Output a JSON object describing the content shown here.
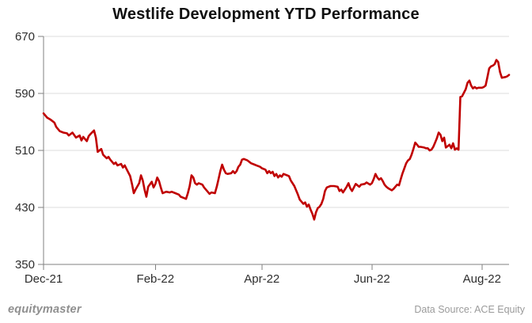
{
  "title": "Westlife Development YTD Performance",
  "footer": {
    "brand": "equitymaster",
    "source": "Data Source: ACE Equity"
  },
  "colors": {
    "line": "#c00000",
    "grid": "#dcdcdc",
    "axis": "#808080",
    "tick_label": "#2e2e2e",
    "title": "#111111",
    "footer_gray": "#9b9b9b"
  },
  "chart_data": {
    "type": "line",
    "title": "Westlife Development YTD Performance",
    "xlabel": "",
    "ylabel": "",
    "grid": "horizontal",
    "legend": "none",
    "y_axis": {
      "ticks": [
        350,
        430,
        510,
        590,
        670
      ],
      "range": [
        350,
        670
      ]
    },
    "x_axis": {
      "tick_labels": [
        "Dec-21",
        "Feb-22",
        "Apr-22",
        "Jun-22",
        "Aug-22"
      ],
      "tick_dates": [
        "2021-12-01",
        "2022-02-01",
        "2022-04-01",
        "2022-06-01",
        "2022-08-01"
      ],
      "range_dates": [
        "2021-12-01",
        "2022-08-16"
      ]
    },
    "series": [
      {
        "color": "#c00000",
        "points": [
          [
            "2021-12-01",
            562
          ],
          [
            "2021-12-03",
            556
          ],
          [
            "2021-12-05",
            553
          ],
          [
            "2021-12-07",
            549
          ],
          [
            "2021-12-08",
            543
          ],
          [
            "2021-12-10",
            537
          ],
          [
            "2021-12-12",
            535
          ],
          [
            "2021-12-14",
            534
          ],
          [
            "2021-12-15",
            531
          ],
          [
            "2021-12-17",
            535
          ],
          [
            "2021-12-19",
            528
          ],
          [
            "2021-12-21",
            531
          ],
          [
            "2021-12-22",
            524
          ],
          [
            "2021-12-23",
            529
          ],
          [
            "2021-12-25",
            523
          ],
          [
            "2021-12-26",
            530
          ],
          [
            "2021-12-27",
            533
          ],
          [
            "2021-12-29",
            538
          ],
          [
            "2021-12-30",
            528
          ],
          [
            "2021-12-31",
            508
          ],
          [
            "2022-01-02",
            512
          ],
          [
            "2022-01-03",
            504
          ],
          [
            "2022-01-05",
            499
          ],
          [
            "2022-01-06",
            501
          ],
          [
            "2022-01-07",
            497
          ],
          [
            "2022-01-09",
            491
          ],
          [
            "2022-01-10",
            493
          ],
          [
            "2022-01-11",
            489
          ],
          [
            "2022-01-13",
            491
          ],
          [
            "2022-01-14",
            486
          ],
          [
            "2022-01-15",
            489
          ],
          [
            "2022-01-16",
            484
          ],
          [
            "2022-01-18",
            474
          ],
          [
            "2022-01-19",
            463
          ],
          [
            "2022-01-20",
            450
          ],
          [
            "2022-01-21",
            455
          ],
          [
            "2022-01-23",
            464
          ],
          [
            "2022-01-24",
            475
          ],
          [
            "2022-01-25",
            468
          ],
          [
            "2022-01-26",
            455
          ],
          [
            "2022-01-27",
            445
          ],
          [
            "2022-01-28",
            459
          ],
          [
            "2022-01-30",
            466
          ],
          [
            "2022-01-31",
            458
          ],
          [
            "2022-02-01",
            463
          ],
          [
            "2022-02-02",
            472
          ],
          [
            "2022-02-03",
            467
          ],
          [
            "2022-02-04",
            458
          ],
          [
            "2022-02-05",
            450
          ],
          [
            "2022-02-07",
            452
          ],
          [
            "2022-02-09",
            451
          ],
          [
            "2022-02-10",
            452
          ],
          [
            "2022-02-12",
            450
          ],
          [
            "2022-02-14",
            448
          ],
          [
            "2022-02-15",
            445
          ],
          [
            "2022-02-17",
            443
          ],
          [
            "2022-02-18",
            442
          ],
          [
            "2022-02-19",
            450
          ],
          [
            "2022-02-20",
            460
          ],
          [
            "2022-02-21",
            475
          ],
          [
            "2022-02-22",
            472
          ],
          [
            "2022-02-23",
            464
          ],
          [
            "2022-02-24",
            462
          ],
          [
            "2022-02-25",
            464
          ],
          [
            "2022-02-26",
            463
          ],
          [
            "2022-02-27",
            462
          ],
          [
            "2022-02-28",
            458
          ],
          [
            "2022-03-02",
            452
          ],
          [
            "2022-03-03",
            449
          ],
          [
            "2022-03-04",
            451
          ],
          [
            "2022-03-06",
            450
          ],
          [
            "2022-03-07",
            459
          ],
          [
            "2022-03-08",
            470
          ],
          [
            "2022-03-09",
            481
          ],
          [
            "2022-03-10",
            490
          ],
          [
            "2022-03-11",
            483
          ],
          [
            "2022-03-12",
            478
          ],
          [
            "2022-03-13",
            477
          ],
          [
            "2022-03-15",
            478
          ],
          [
            "2022-03-16",
            481
          ],
          [
            "2022-03-17",
            478
          ],
          [
            "2022-03-18",
            481
          ],
          [
            "2022-03-19",
            487
          ],
          [
            "2022-03-20",
            490
          ],
          [
            "2022-03-21",
            497
          ],
          [
            "2022-03-22",
            498
          ],
          [
            "2022-03-24",
            496
          ],
          [
            "2022-03-25",
            494
          ],
          [
            "2022-03-26",
            492
          ],
          [
            "2022-03-28",
            490
          ],
          [
            "2022-03-29",
            489
          ],
          [
            "2022-03-31",
            487
          ],
          [
            "2022-04-01",
            485
          ],
          [
            "2022-04-03",
            483
          ],
          [
            "2022-04-04",
            478
          ],
          [
            "2022-04-05",
            481
          ],
          [
            "2022-04-06",
            478
          ],
          [
            "2022-04-07",
            480
          ],
          [
            "2022-04-08",
            474
          ],
          [
            "2022-04-09",
            477
          ],
          [
            "2022-04-10",
            472
          ],
          [
            "2022-04-11",
            475
          ],
          [
            "2022-04-12",
            473
          ],
          [
            "2022-04-13",
            477
          ],
          [
            "2022-04-15",
            475
          ],
          [
            "2022-04-16",
            474
          ],
          [
            "2022-04-17",
            468
          ],
          [
            "2022-04-19",
            460
          ],
          [
            "2022-04-21",
            448
          ],
          [
            "2022-04-22",
            441
          ],
          [
            "2022-04-23",
            438
          ],
          [
            "2022-04-24",
            435
          ],
          [
            "2022-04-25",
            437
          ],
          [
            "2022-04-26",
            431
          ],
          [
            "2022-04-27",
            434
          ],
          [
            "2022-04-28",
            427
          ],
          [
            "2022-04-29",
            421
          ],
          [
            "2022-04-30",
            413
          ],
          [
            "2022-05-01",
            423
          ],
          [
            "2022-05-02",
            429
          ],
          [
            "2022-05-03",
            431
          ],
          [
            "2022-05-04",
            435
          ],
          [
            "2022-05-05",
            442
          ],
          [
            "2022-05-06",
            453
          ],
          [
            "2022-05-07",
            458
          ],
          [
            "2022-05-09",
            460
          ],
          [
            "2022-05-10",
            460
          ],
          [
            "2022-05-11",
            460
          ],
          [
            "2022-05-13",
            459
          ],
          [
            "2022-05-14",
            453
          ],
          [
            "2022-05-15",
            455
          ],
          [
            "2022-05-16",
            451
          ],
          [
            "2022-05-17",
            455
          ],
          [
            "2022-05-18",
            459
          ],
          [
            "2022-05-19",
            464
          ],
          [
            "2022-05-20",
            457
          ],
          [
            "2022-05-21",
            453
          ],
          [
            "2022-05-22",
            458
          ],
          [
            "2022-05-23",
            463
          ],
          [
            "2022-05-25",
            459
          ],
          [
            "2022-05-26",
            462
          ],
          [
            "2022-05-28",
            463
          ],
          [
            "2022-05-29",
            465
          ],
          [
            "2022-05-31",
            462
          ],
          [
            "2022-06-01",
            464
          ],
          [
            "2022-06-02",
            470
          ],
          [
            "2022-06-03",
            477
          ],
          [
            "2022-06-04",
            472
          ],
          [
            "2022-06-05",
            469
          ],
          [
            "2022-06-06",
            471
          ],
          [
            "2022-06-07",
            467
          ],
          [
            "2022-06-08",
            462
          ],
          [
            "2022-06-09",
            459
          ],
          [
            "2022-06-10",
            457
          ],
          [
            "2022-06-12",
            454
          ],
          [
            "2022-06-13",
            456
          ],
          [
            "2022-06-14",
            459
          ],
          [
            "2022-06-15",
            462
          ],
          [
            "2022-06-16",
            461
          ],
          [
            "2022-06-17",
            470
          ],
          [
            "2022-06-18",
            478
          ],
          [
            "2022-06-19",
            485
          ],
          [
            "2022-06-20",
            492
          ],
          [
            "2022-06-21",
            496
          ],
          [
            "2022-06-22",
            498
          ],
          [
            "2022-06-23",
            504
          ],
          [
            "2022-06-24",
            512
          ],
          [
            "2022-06-25",
            521
          ],
          [
            "2022-06-26",
            518
          ],
          [
            "2022-06-27",
            515
          ],
          [
            "2022-06-28",
            515
          ],
          [
            "2022-06-30",
            514
          ],
          [
            "2022-07-01",
            513
          ],
          [
            "2022-07-02",
            513
          ],
          [
            "2022-07-03",
            510
          ],
          [
            "2022-07-04",
            511
          ],
          [
            "2022-07-05",
            515
          ],
          [
            "2022-07-06",
            521
          ],
          [
            "2022-07-07",
            527
          ],
          [
            "2022-07-08",
            535
          ],
          [
            "2022-07-09",
            532
          ],
          [
            "2022-07-10",
            523
          ],
          [
            "2022-07-11",
            528
          ],
          [
            "2022-07-12",
            514
          ],
          [
            "2022-07-14",
            518
          ],
          [
            "2022-07-15",
            513
          ],
          [
            "2022-07-16",
            520
          ],
          [
            "2022-07-17",
            511
          ],
          [
            "2022-07-18",
            513
          ],
          [
            "2022-07-19",
            511
          ],
          [
            "2022-07-20",
            585
          ],
          [
            "2022-07-21",
            586
          ],
          [
            "2022-07-22",
            591
          ],
          [
            "2022-07-23",
            596
          ],
          [
            "2022-07-24",
            605
          ],
          [
            "2022-07-25",
            608
          ],
          [
            "2022-07-26",
            601
          ],
          [
            "2022-07-27",
            597
          ],
          [
            "2022-07-28",
            599
          ],
          [
            "2022-07-29",
            597
          ],
          [
            "2022-07-30",
            598
          ],
          [
            "2022-07-31",
            598
          ],
          [
            "2022-08-01",
            598
          ],
          [
            "2022-08-02",
            599
          ],
          [
            "2022-08-03",
            601
          ],
          [
            "2022-08-04",
            613
          ],
          [
            "2022-08-05",
            625
          ],
          [
            "2022-08-06",
            628
          ],
          [
            "2022-08-07",
            629
          ],
          [
            "2022-08-08",
            631
          ],
          [
            "2022-08-09",
            637
          ],
          [
            "2022-08-10",
            634
          ],
          [
            "2022-08-11",
            620
          ],
          [
            "2022-08-12",
            612
          ],
          [
            "2022-08-14",
            613
          ],
          [
            "2022-08-15",
            614
          ],
          [
            "2022-08-16",
            616
          ]
        ]
      }
    ]
  }
}
